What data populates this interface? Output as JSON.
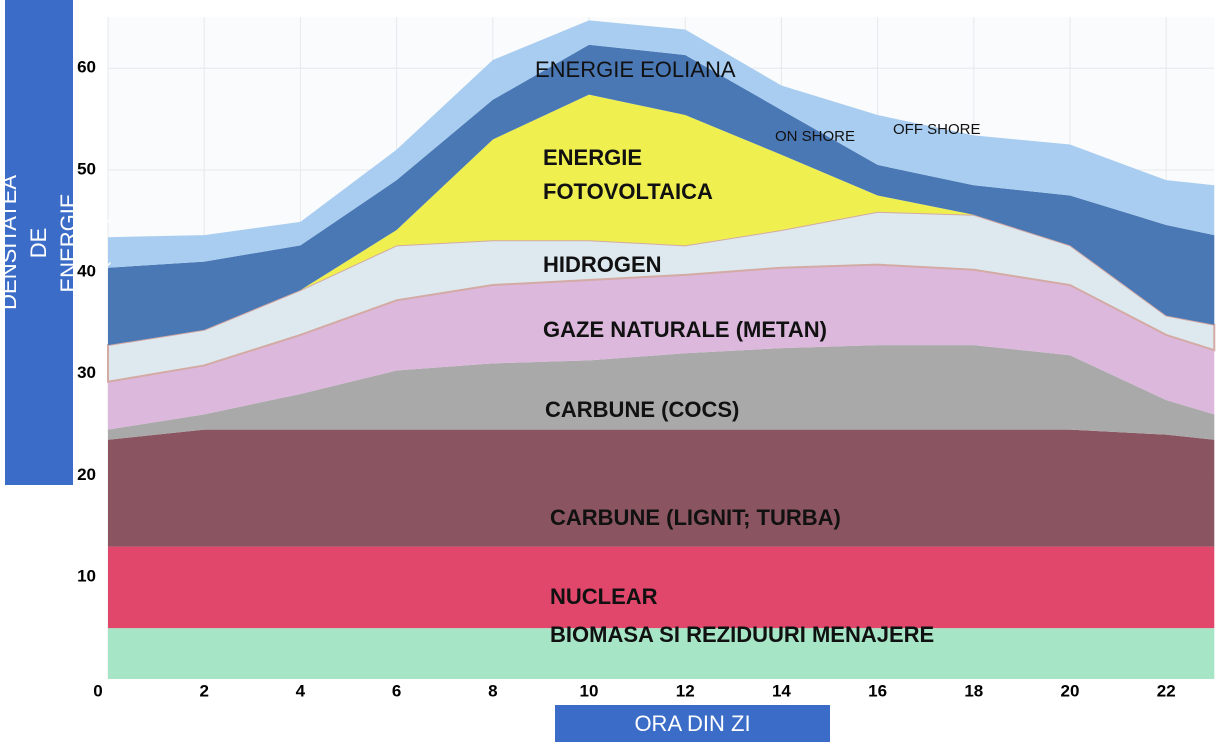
{
  "chart_data": {
    "type": "stacked-area",
    "y_label": "PUTEREA – DENSITATEA DE ENERGIE (GW)",
    "x_label": "ORA DIN ZI",
    "annotation": "ENERGIE EOLIANA",
    "x": [
      0,
      2,
      4,
      6,
      8,
      10,
      12,
      14,
      16,
      18,
      20,
      22,
      23
    ],
    "xlim": [
      0,
      23
    ],
    "xticks": [
      0,
      2,
      4,
      6,
      8,
      10,
      12,
      14,
      16,
      18,
      20,
      22
    ],
    "ylim": [
      0,
      65
    ],
    "yticks": [
      10,
      20,
      30,
      40,
      50,
      60
    ],
    "grid": true,
    "series": [
      {
        "name": "BIOMASA SI REZIDUURI MENAJERE",
        "color": "#a6e6c6",
        "values": [
          5,
          5,
          5,
          5,
          5,
          5,
          5,
          5,
          5,
          5,
          5,
          5,
          5
        ]
      },
      {
        "name": "NUCLEAR",
        "color": "#e0476b",
        "values": [
          8,
          8,
          8,
          8,
          8,
          8,
          8,
          8,
          8,
          8,
          8,
          8,
          8
        ]
      },
      {
        "name": "CARBUNE (LIGNIT; TURBA)",
        "color": "#8a5560",
        "values": [
          10.5,
          11.5,
          11.5,
          11.5,
          11.5,
          11.5,
          11.5,
          11.5,
          11.5,
          11.5,
          11.5,
          11,
          10.5
        ]
      },
      {
        "name": "CARBUNE (COCS)",
        "color": "#a9a9a9",
        "values": [
          1,
          1.5,
          3.5,
          5.8,
          6.5,
          6.8,
          7.5,
          8,
          8.3,
          8.3,
          7.3,
          3.4,
          2.5
        ]
      },
      {
        "name": "GAZE NATURALE (METAN)",
        "color": "#dcb8dc",
        "values": [
          4.7,
          4.8,
          5.8,
          6.9,
          7.7,
          7.9,
          7.7,
          7.9,
          7.9,
          7.4,
          6.9,
          6.4,
          6.3
        ]
      },
      {
        "name": "HIDROGEN",
        "color": "#dde9ef",
        "values": [
          3.6,
          3.5,
          4.4,
          5.4,
          4.4,
          3.9,
          2.9,
          3.7,
          5.2,
          5.4,
          3.9,
          1.9,
          2.5
        ]
      },
      {
        "name": "ENERGIE FOTOVOLTAICA",
        "color": "#eff050",
        "values": [
          0,
          0,
          0,
          1.5,
          9.9,
          14.3,
          12.8,
          7.4,
          1.6,
          0,
          0,
          0,
          0
        ]
      },
      {
        "name": "ON SHORE",
        "color": "#4a78b4",
        "values": [
          7.6,
          6.7,
          4.4,
          4.9,
          3.9,
          4.9,
          5.9,
          4.4,
          3,
          2.9,
          4.9,
          8.9,
          8.8
        ]
      },
      {
        "name": "OFF SHORE",
        "color": "#a8cdf0",
        "values": [
          3,
          2.6,
          2.3,
          3,
          3.9,
          2.4,
          2.5,
          2.4,
          4.9,
          4.9,
          5,
          4.4,
          4.9
        ]
      }
    ]
  }
}
